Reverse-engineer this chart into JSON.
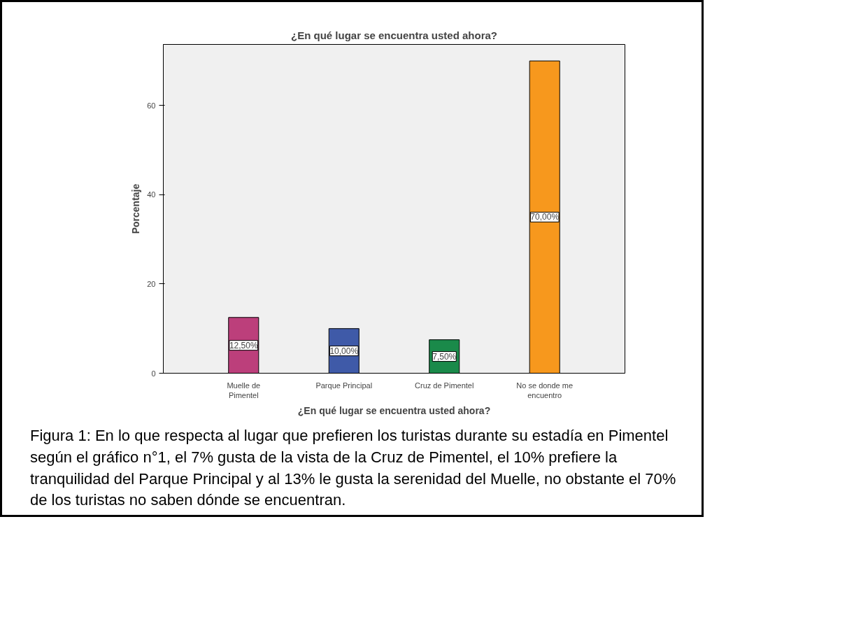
{
  "chart_data": {
    "type": "bar",
    "title": "¿En qué lugar se encuentra usted ahora?",
    "xlabel": "¿En qué lugar se encuentra usted ahora?",
    "ylabel": "Porcentaje",
    "categories": [
      "Muelle de Pimentel",
      "Parque Principal",
      "Cruz de Pimentel",
      "No se donde me encuentro"
    ],
    "values": [
      12.5,
      10,
      7.5,
      70
    ],
    "colors": [
      "#bc3f7b",
      "#3f5aa8",
      "#1a8a4a",
      "#f7981d"
    ],
    "value_labels": [
      "12,50%",
      "10,00%",
      "7,50%",
      "70,00%"
    ],
    "ylim": [
      0,
      73.7
    ],
    "yticks": [
      0,
      20,
      40,
      60
    ],
    "grid": false,
    "annotations": [
      "Figura 1: En lo que respecta al lugar que prefieren los turistas durante su estadía en Pimentel según el gráfico n°1, el 7% gusta de la vista de la Cruz de Pimentel, el 10% prefiere la tranquilidad del Parque Principal y al 13% le gusta la serenidad del Muelle, no obstante el 70% de los turistas no saben dónde se encuentran."
    ]
  }
}
